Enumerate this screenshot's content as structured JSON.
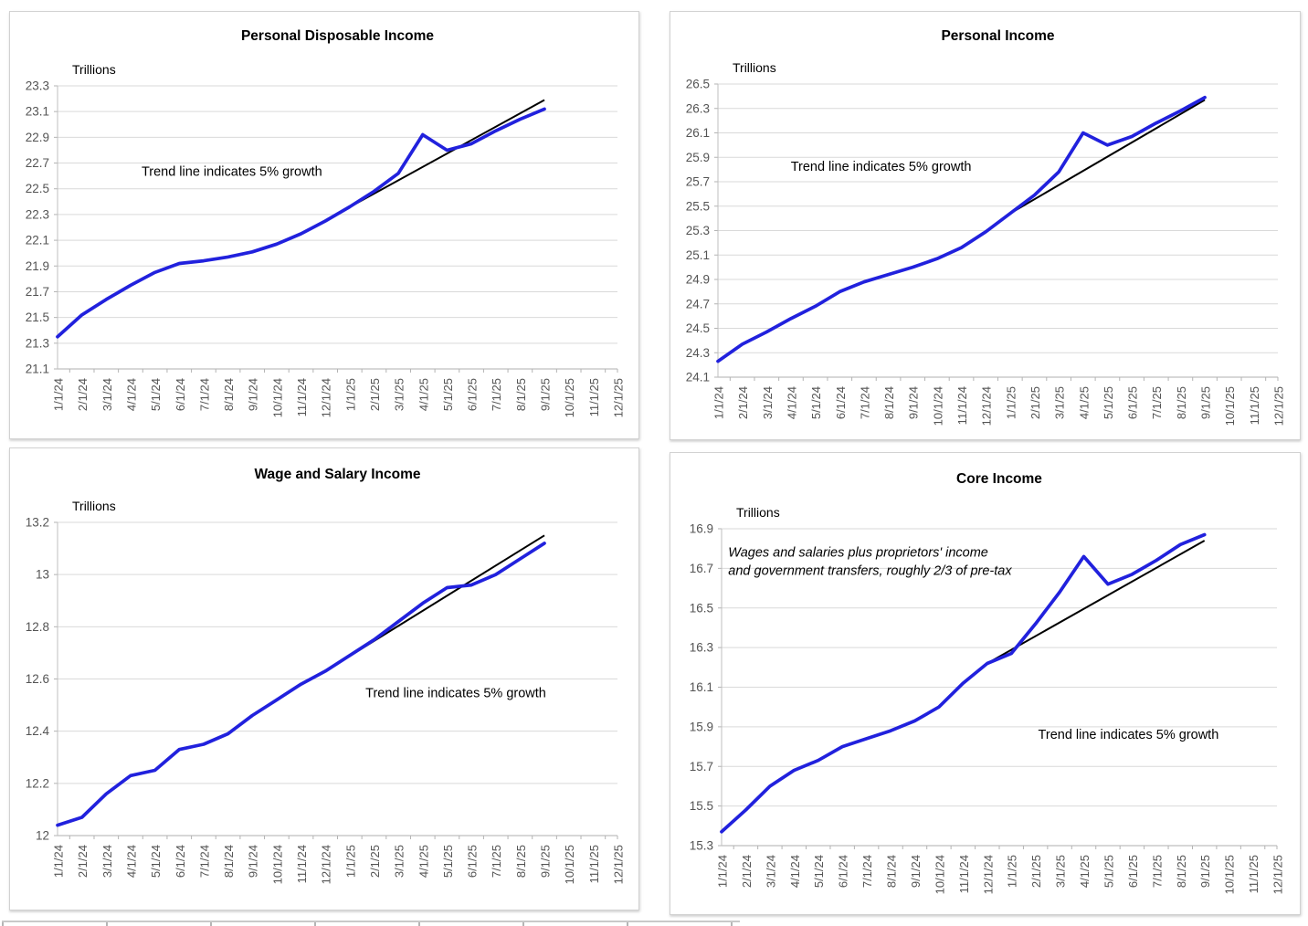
{
  "page": {
    "background": "#ffffff"
  },
  "shared": {
    "units_label": "Trillions",
    "colors": {
      "series_blue": "#2121dd",
      "trend_black": "#000000",
      "gridline": "#d9d9d9",
      "axis_line": "#bfbfbf",
      "tick_mark": "#b3b3b3",
      "tick_label": "#545454",
      "title_text": "#000000"
    }
  },
  "chart_data": [
    {
      "type": "line",
      "title": "Personal Disposable Income",
      "ylabel": "Trillions",
      "ylim": [
        21.1,
        23.3
      ],
      "y_step": 0.2,
      "grid": true,
      "legend_position": "none",
      "categories": [
        "1/1/24",
        "2/1/24",
        "3/1/24",
        "4/1/24",
        "5/1/24",
        "6/1/24",
        "7/1/24",
        "8/1/24",
        "9/1/24",
        "10/1/24",
        "11/1/24",
        "12/1/24",
        "1/1/25",
        "2/1/25",
        "3/1/25",
        "4/1/25",
        "5/1/25",
        "6/1/25",
        "7/1/25",
        "8/1/25",
        "9/1/25",
        "10/1/25",
        "11/1/25",
        "12/1/25"
      ],
      "series": [
        {
          "name": "Personal Disposable Income",
          "color": "#2121dd",
          "values": [
            21.35,
            21.52,
            21.64,
            21.75,
            21.85,
            21.92,
            21.94,
            21.97,
            22.01,
            22.07,
            22.15,
            22.25,
            22.36,
            22.48,
            22.62,
            22.92,
            22.8,
            22.85,
            22.95,
            23.04,
            23.12
          ]
        }
      ],
      "trend": {
        "name": "5% growth trend",
        "color": "#000000",
        "start_index": 10,
        "start_value": 22.15,
        "end_index": 20,
        "end_value": 23.19
      },
      "annotations": [
        {
          "lines": [
            "Trend line indicates  5% growth"
          ],
          "x_frac": 0.15,
          "y_value": 22.6,
          "italic": false,
          "align": "start"
        }
      ]
    },
    {
      "type": "line",
      "title": "Personal Income",
      "ylabel": "Trillions",
      "ylim": [
        24.1,
        26.5
      ],
      "y_step": 0.2,
      "grid": true,
      "legend_position": "none",
      "categories": [
        "1/1/24",
        "2/1/24",
        "3/1/24",
        "4/1/24",
        "5/1/24",
        "6/1/24",
        "7/1/24",
        "8/1/24",
        "9/1/24",
        "10/1/24",
        "11/1/24",
        "12/1/24",
        "1/1/25",
        "2/1/25",
        "3/1/25",
        "4/1/25",
        "5/1/25",
        "6/1/25",
        "7/1/25",
        "8/1/25",
        "9/1/25",
        "10/1/25",
        "11/1/25",
        "12/1/25"
      ],
      "series": [
        {
          "name": "Personal Income",
          "color": "#2121dd",
          "values": [
            24.23,
            24.37,
            24.47,
            24.58,
            24.68,
            24.8,
            24.88,
            24.94,
            25.0,
            25.07,
            25.16,
            25.29,
            25.44,
            25.59,
            25.78,
            26.1,
            26.0,
            26.07,
            26.18,
            26.28,
            26.39
          ]
        }
      ],
      "trend": {
        "name": "5% growth trend",
        "color": "#000000",
        "start_index": 12,
        "start_value": 25.44,
        "end_index": 20,
        "end_value": 26.37
      },
      "annotations": [
        {
          "lines": [
            "Trend line indicates  5% growth"
          ],
          "x_frac": 0.13,
          "y_value": 25.79,
          "italic": false,
          "align": "start"
        }
      ]
    },
    {
      "type": "line",
      "title": "Wage and Salary Income",
      "ylabel": "Trillions",
      "ylim": [
        12.0,
        13.2
      ],
      "y_step": 0.2,
      "grid": true,
      "legend_position": "none",
      "categories": [
        "1/1/24",
        "2/1/24",
        "3/1/24",
        "4/1/24",
        "5/1/24",
        "6/1/24",
        "7/1/24",
        "8/1/24",
        "9/1/24",
        "10/1/24",
        "11/1/24",
        "12/1/24",
        "1/1/25",
        "2/1/25",
        "3/1/25",
        "4/1/25",
        "5/1/25",
        "6/1/25",
        "7/1/25",
        "8/1/25",
        "9/1/25",
        "10/1/25",
        "11/1/25",
        "12/1/25"
      ],
      "series": [
        {
          "name": "Wage and Salary Income",
          "color": "#2121dd",
          "values": [
            12.04,
            12.07,
            12.16,
            12.23,
            12.25,
            12.33,
            12.35,
            12.39,
            12.46,
            12.52,
            12.58,
            12.63,
            12.69,
            12.75,
            12.82,
            12.89,
            12.95,
            12.96,
            13.0,
            13.06,
            13.12
          ]
        }
      ],
      "trend": {
        "name": "5% growth trend",
        "color": "#000000",
        "start_index": 11,
        "start_value": 12.63,
        "end_index": 20,
        "end_value": 13.15
      },
      "annotations": [
        {
          "lines": [
            "Trend line indicates  5% growth"
          ],
          "x_frac": 0.55,
          "y_value": 12.53,
          "italic": false,
          "align": "start"
        }
      ]
    },
    {
      "type": "line",
      "title": "Core Income",
      "ylabel": "Trillions",
      "ylim": [
        15.3,
        16.9
      ],
      "y_step": 0.2,
      "grid": true,
      "legend_position": "none",
      "categories": [
        "1/1/24",
        "2/1/24",
        "3/1/24",
        "4/1/24",
        "5/1/24",
        "6/1/24",
        "7/1/24",
        "8/1/24",
        "9/1/24",
        "10/1/24",
        "11/1/24",
        "12/1/24",
        "1/1/25",
        "2/1/25",
        "3/1/25",
        "4/1/25",
        "5/1/25",
        "6/1/25",
        "7/1/25",
        "8/1/25",
        "9/1/25",
        "10/1/25",
        "11/1/25",
        "12/1/25"
      ],
      "series": [
        {
          "name": "Core Income",
          "color": "#2121dd",
          "values": [
            15.37,
            15.48,
            15.6,
            15.68,
            15.73,
            15.8,
            15.84,
            15.88,
            15.93,
            16.0,
            16.12,
            16.22,
            16.27,
            16.42,
            16.58,
            16.76,
            16.62,
            16.67,
            16.74,
            16.82,
            16.87
          ]
        }
      ],
      "trend": {
        "name": "5% growth trend",
        "color": "#000000",
        "start_index": 11,
        "start_value": 16.22,
        "end_index": 20,
        "end_value": 16.84
      },
      "annotations": [
        {
          "lines": [
            "Wages and salaries plus proprietors' income",
            "and government transfers, roughly 2/3 of pre-tax"
          ],
          "x_frac": 0.012,
          "y_value": 16.76,
          "italic": true,
          "align": "start"
        },
        {
          "lines": [
            "Trend line indicates  5% growth"
          ],
          "x_frac": 0.57,
          "y_value": 15.84,
          "italic": false,
          "align": "start"
        }
      ]
    }
  ]
}
